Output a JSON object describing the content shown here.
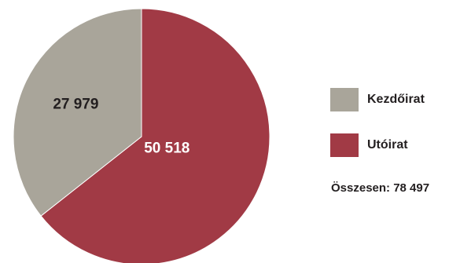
{
  "chart_data": {
    "type": "pie",
    "title": "",
    "slices": [
      {
        "name": "Kezdőirat",
        "value": 27979,
        "label": "27 979",
        "color": "#a9a59a",
        "label_color": "#231f20"
      },
      {
        "name": "Utóirat",
        "value": 50518,
        "label": "50 518",
        "color": "#a13a45",
        "label_color": "#ffffff"
      }
    ],
    "legend": {
      "placement": "right",
      "items": [
        {
          "label": "Kezdőirat",
          "color": "#a9a59a"
        },
        {
          "label": "Utóirat",
          "color": "#a13a45"
        }
      ]
    },
    "total_text": "Összesen: 78 497"
  }
}
